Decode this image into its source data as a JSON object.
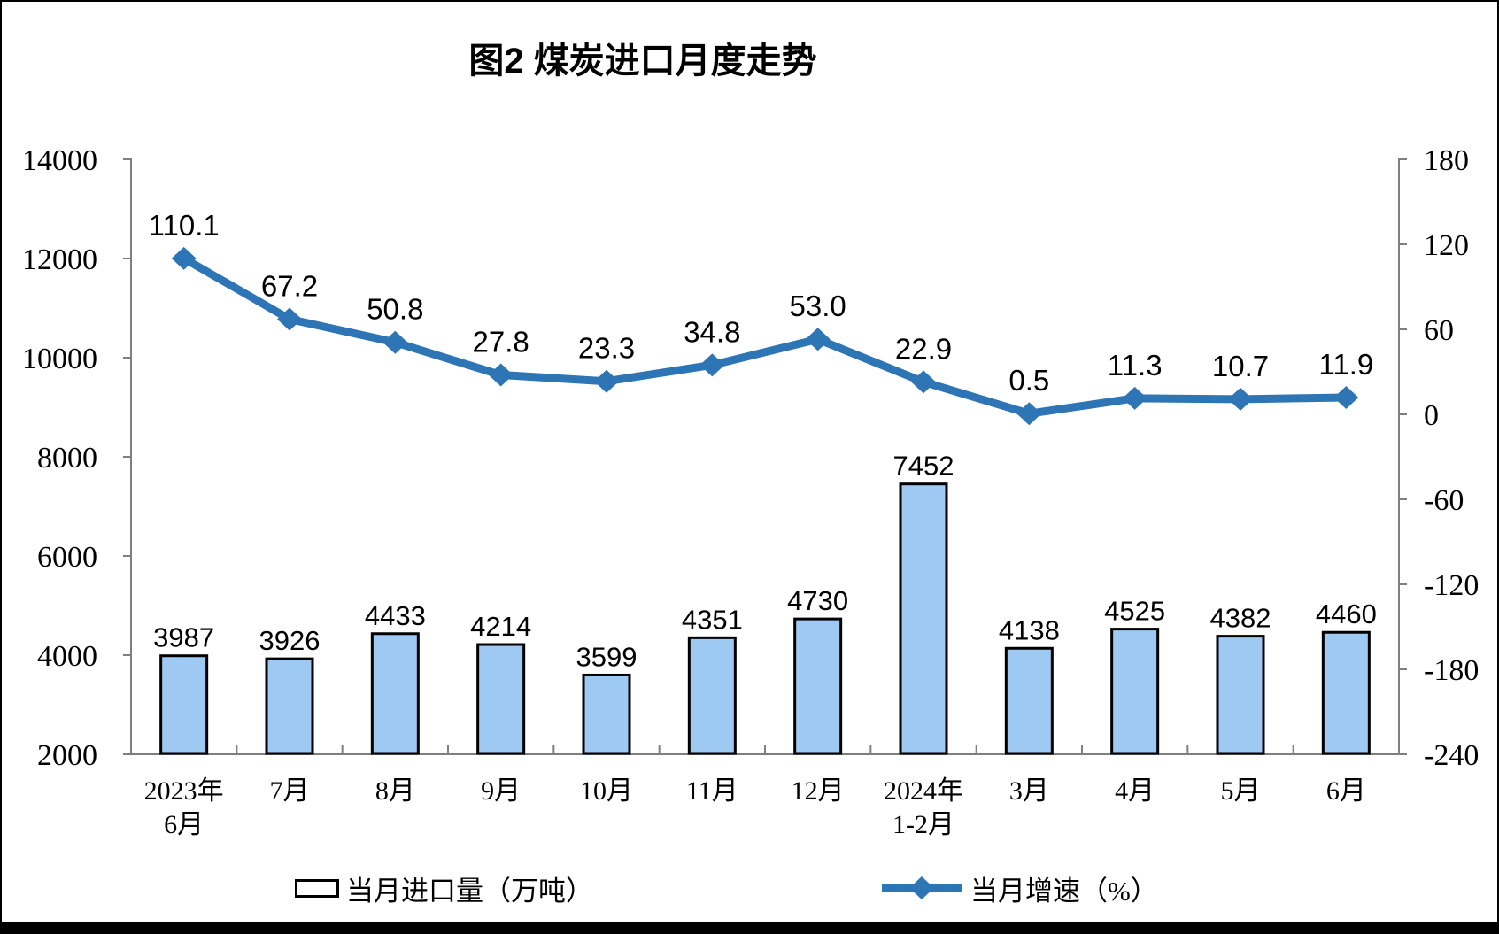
{
  "title": "图2 煤炭进口月度走势",
  "legend": {
    "bar": {
      "label": "当月进口量（万吨）"
    },
    "line": {
      "label": "当月增速（%）"
    }
  },
  "colors": {
    "bar_fill": "#9EC9F3",
    "bar_stroke": "#000000",
    "line": "#2E75B6",
    "axis": "#7F7F7F",
    "text": "#000000"
  },
  "chart_data": {
    "type": "combo-bar-line",
    "title": "图2 煤炭进口月度走势",
    "categories": [
      "2023年\n6月",
      "7月",
      "8月",
      "9月",
      "10月",
      "11月",
      "12月",
      "2024年\n1-2月",
      "3月",
      "4月",
      "5月",
      "6月"
    ],
    "series": [
      {
        "name": "当月进口量（万吨）",
        "type": "bar",
        "axis": "left",
        "values": [
          3987,
          3926,
          4433,
          4214,
          3599,
          4351,
          4730,
          7452,
          4138,
          4525,
          4382,
          4460
        ],
        "labels": [
          "3987",
          "3926",
          "4433",
          "4214",
          "3599",
          "4351",
          "4730",
          "7452",
          "4138",
          "4525",
          "4382",
          "4460"
        ]
      },
      {
        "name": "当月增速（%）",
        "type": "line",
        "axis": "right",
        "values": [
          110.1,
          67.2,
          50.8,
          27.8,
          23.3,
          34.8,
          53.0,
          22.9,
          0.5,
          11.3,
          10.7,
          11.9
        ],
        "labels": [
          "110.1",
          "67.2",
          "50.8",
          "27.8",
          "23.3",
          "34.8",
          "53.0",
          "22.9",
          "0.5",
          "11.3",
          "10.7",
          "11.9"
        ]
      }
    ],
    "left_axis": {
      "min": 2000,
      "max": 14000,
      "step": 2000,
      "tick_labels": [
        "2000",
        "4000",
        "6000",
        "8000",
        "10000",
        "12000",
        "14000"
      ]
    },
    "right_axis": {
      "min": -240,
      "max": 180,
      "step": 60,
      "tick_labels": [
        "-240",
        "-180",
        "-120",
        "-60",
        "0",
        "60",
        "120",
        "180"
      ]
    },
    "grid": false,
    "legend_position": "bottom"
  }
}
